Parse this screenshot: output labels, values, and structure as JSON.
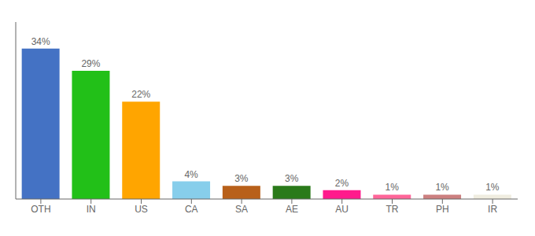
{
  "chart_data": {
    "type": "bar",
    "categories": [
      "OTH",
      "IN",
      "US",
      "CA",
      "SA",
      "AE",
      "AU",
      "TR",
      "PH",
      "IR"
    ],
    "values": [
      34,
      29,
      22,
      4,
      3,
      3,
      2,
      1,
      1,
      1
    ],
    "value_labels": [
      "34%",
      "29%",
      "22%",
      "4%",
      "3%",
      "3%",
      "2%",
      "1%",
      "1%",
      "1%"
    ],
    "colors": [
      "#4472c4",
      "#22c018",
      "#ffa500",
      "#87ceeb",
      "#b8601a",
      "#2a7a1a",
      "#ff1a8c",
      "#ff6699",
      "#cc8080",
      "#f0ede0"
    ],
    "ylim": [
      0,
      40
    ],
    "data_labels": true,
    "tick_labels": "x"
  }
}
